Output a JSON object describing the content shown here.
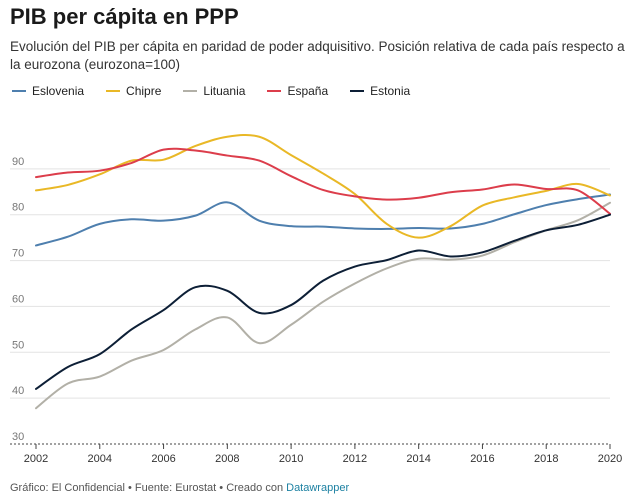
{
  "chart_data": {
    "type": "line",
    "title": "PIB per cápita en PPP",
    "subtitle": "Evolución del PIB per cápita en paridad de poder adquisitivo. Posición relativa de cada país respecto a la eurozona (eurozona=100)",
    "xlabel": "",
    "ylabel": "",
    "xlim": [
      2002,
      2020
    ],
    "ylim": [
      30,
      100
    ],
    "x_ticks": [
      2002,
      2004,
      2006,
      2008,
      2010,
      2012,
      2014,
      2016,
      2018,
      2020
    ],
    "x_tick_labels": [
      "2002",
      "2004",
      "2006",
      "2008",
      "2010",
      "2012",
      "2014",
      "2016",
      "2018",
      "2020"
    ],
    "y_ticks": [
      30,
      40,
      50,
      60,
      70,
      80,
      90
    ],
    "y_tick_labels": [
      "30",
      "40",
      "50",
      "60",
      "70",
      "80",
      "90"
    ],
    "grid": true,
    "legend_position": "top-left",
    "x": [
      2002,
      2003,
      2004,
      2005,
      2006,
      2007,
      2008,
      2009,
      2010,
      2011,
      2012,
      2013,
      2014,
      2015,
      2016,
      2017,
      2018,
      2019,
      2020
    ],
    "series": [
      {
        "name": "Eslovenia",
        "color": "#4e7fae",
        "values": [
          73.3,
          75.2,
          78.0,
          79.0,
          78.7,
          79.8,
          82.7,
          78.7,
          77.5,
          77.4,
          77.0,
          76.9,
          77.1,
          77.0,
          78.0,
          80.1,
          82.1,
          83.4,
          84.4
        ]
      },
      {
        "name": "Chipre",
        "color": "#e9b826",
        "values": [
          85.3,
          86.5,
          88.8,
          91.8,
          92.0,
          95.0,
          97.0,
          97.0,
          93.0,
          89.0,
          84.5,
          78.0,
          75.0,
          77.5,
          82.0,
          83.8,
          85.2,
          86.7,
          84.2
        ]
      },
      {
        "name": "Lituania",
        "color": "#b2b0a7",
        "values": [
          37.8,
          43.2,
          44.7,
          48.2,
          50.5,
          55.0,
          57.6,
          52.0,
          56.0,
          61.0,
          65.0,
          68.3,
          70.4,
          70.2,
          71.1,
          74.0,
          76.6,
          78.8,
          82.6
        ]
      },
      {
        "name": "España",
        "color": "#dc3d4b",
        "values": [
          88.2,
          89.2,
          89.6,
          91.3,
          94.2,
          94.0,
          92.9,
          91.8,
          88.4,
          85.4,
          84.0,
          83.3,
          83.7,
          84.9,
          85.5,
          86.6,
          85.6,
          85.3,
          80.2
        ]
      },
      {
        "name": "Estonia",
        "color": "#0d1f36",
        "values": [
          42.0,
          46.8,
          49.6,
          55.0,
          59.2,
          64.2,
          63.4,
          58.6,
          60.3,
          65.6,
          68.7,
          70.1,
          72.2,
          70.9,
          71.8,
          74.3,
          76.6,
          77.8,
          80.0
        ]
      }
    ]
  },
  "footer": {
    "prefix": "Gráfico: El Confidencial • Fuente: Eurostat • Creado con ",
    "link": "Datawrapper"
  }
}
